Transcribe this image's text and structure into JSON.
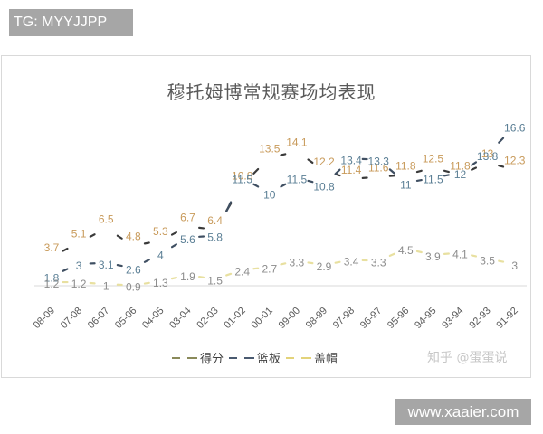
{
  "watermark_top": "TG: MYYJJPP",
  "watermark_bottom": "www.xaaier.com",
  "credit": "知乎 @蛋蛋说",
  "chart_data": {
    "type": "line",
    "title": "穆托姆博常规赛场均表现",
    "xlabel": "",
    "ylabel": "",
    "categories": [
      "08-09",
      "07-08",
      "06-07",
      "05-06",
      "04-05",
      "03-04",
      "02-03",
      "01-02",
      "00-01",
      "99-00",
      "98-99",
      "97-98",
      "96-97",
      "95-96",
      "94-95",
      "93-94",
      "92-93",
      "91-92"
    ],
    "series": [
      {
        "name": "得分",
        "color": "#c89a5a",
        "values": [
          3.7,
          5.1,
          6.5,
          4.8,
          5.3,
          6.7,
          6.4,
          10.8,
          13.5,
          14.1,
          12.2,
          11.4,
          11.6,
          11.8,
          12.5,
          11.8,
          13,
          12.3
        ]
      },
      {
        "name": "篮板",
        "color": "#5b7f95",
        "values": [
          1.8,
          3,
          3.1,
          2.6,
          4,
          5.6,
          5.8,
          11.5,
          10,
          11.5,
          10.8,
          13.4,
          13.3,
          11,
          11.5,
          12,
          13.8,
          16.6
        ]
      },
      {
        "name": "盖帽",
        "color": "#8c8c8c",
        "values": [
          1.2,
          1.2,
          1,
          0.9,
          1.3,
          1.9,
          1.5,
          2.4,
          2.7,
          3.3,
          2.9,
          3.4,
          3.3,
          4.5,
          3.9,
          4.1,
          3.5,
          3
        ]
      }
    ],
    "legend_position": "bottom",
    "grid": false,
    "data_labels": true
  },
  "legend": {
    "items": [
      {
        "label": "得分",
        "color": "#8a8a5a"
      },
      {
        "label": "篮板",
        "color": "#4a5a70"
      },
      {
        "label": "盖帽",
        "color": "#e3d37a"
      }
    ]
  }
}
